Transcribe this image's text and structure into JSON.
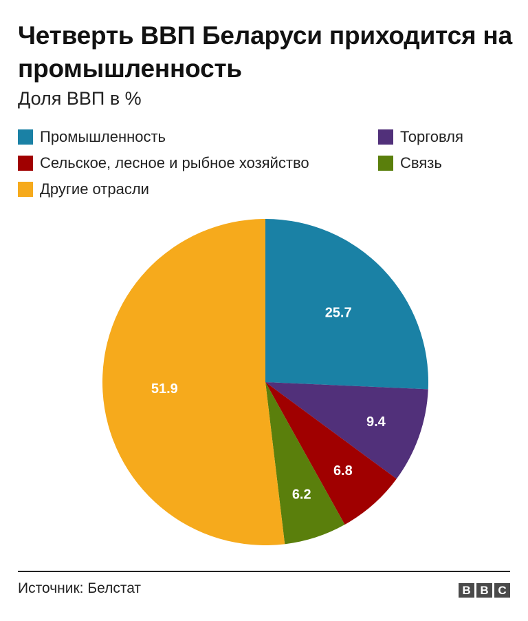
{
  "title": "Четверть ВВП Беларуси приходится на промышленность",
  "subtitle": "Доля ВВП в %",
  "source": "Источник: Белстат",
  "logo": {
    "letters": [
      "B",
      "B",
      "C"
    ]
  },
  "colors": {
    "industry": "#1a81a5",
    "trade": "#51307a",
    "agriculture": "#a00000",
    "communications": "#5a7f0c",
    "other": "#f6aa1c"
  },
  "legend": [
    {
      "label": "Промышленность",
      "color": "#1a81a5"
    },
    {
      "label": "Торговля",
      "color": "#51307a"
    },
    {
      "label": "Сельское, лесное и рыбное хозяйство",
      "color": "#a00000"
    },
    {
      "label": "Связь",
      "color": "#5a7f0c"
    },
    {
      "label": "Другие отрасли",
      "color": "#f6aa1c"
    }
  ],
  "chart_data": {
    "type": "pie",
    "title": "Четверть ВВП Беларуси приходится на промышленность",
    "subtitle": "Доля ВВП в %",
    "legend_position": "top",
    "slices": [
      {
        "label": "Промышленность",
        "value": 25.7,
        "color": "#1a81a5"
      },
      {
        "label": "Торговля",
        "value": 9.4,
        "color": "#51307a"
      },
      {
        "label": "Сельское, лесное и рыбное хозяйство",
        "value": 6.8,
        "color": "#a00000"
      },
      {
        "label": "Связь",
        "value": 6.2,
        "color": "#5a7f0c"
      },
      {
        "label": "Другие отрасли",
        "value": 51.9,
        "color": "#f6aa1c"
      }
    ]
  }
}
